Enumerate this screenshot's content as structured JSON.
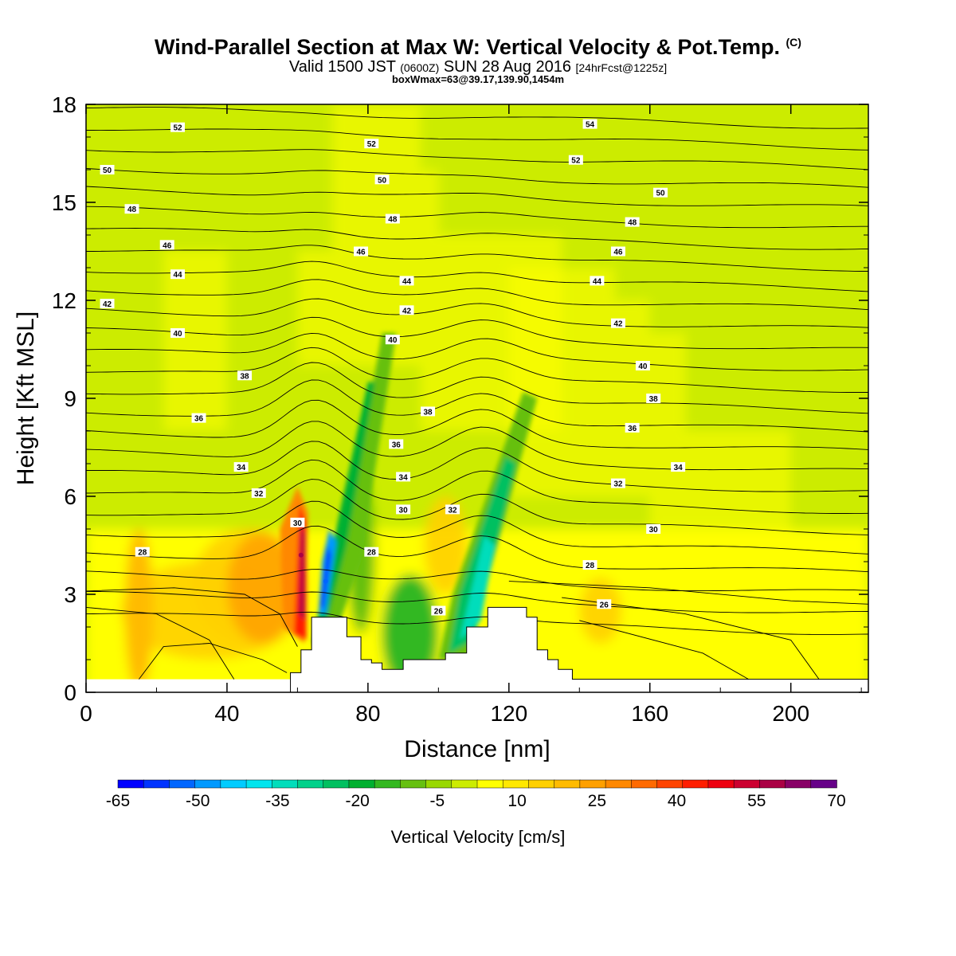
{
  "header": {
    "title": "Wind-Parallel Section at Max W: Vertical Velocity & Pot.Temp.",
    "title_mark": "(C)",
    "valid_a": "Valid 1500 JST ",
    "valid_utc": "(0600Z)",
    "valid_b": " SUN 28 Aug 2016 ",
    "forecast": "[24hrFcst@1225z]",
    "box_info": "boxWmax=63@39.17,139.90,1454m"
  },
  "chart_data": {
    "type": "heatmap",
    "xlabel": "Distance [nm]",
    "ylabel": "Height [Kft MSL]",
    "xlim": [
      0,
      222
    ],
    "ylim": [
      0,
      18
    ],
    "x_ticks": [
      "0",
      "40",
      "80",
      "120",
      "160",
      "200"
    ],
    "y_ticks": [
      "0",
      "3",
      "6",
      "9",
      "12",
      "15",
      "18"
    ],
    "colorbar": {
      "label": "Vertical Velocity [cm/s]",
      "tick_labels": [
        "-65",
        "-50",
        "-35",
        "-20",
        "-5",
        "10",
        "25",
        "40",
        "55",
        "70"
      ],
      "levels": [
        -65,
        -60,
        -55,
        -50,
        -45,
        -40,
        -35,
        -30,
        -25,
        -20,
        -15,
        -10,
        -5,
        0,
        5,
        10,
        15,
        20,
        25,
        30,
        35,
        40,
        45,
        50,
        55,
        60,
        65,
        70
      ],
      "colors": [
        "#0000ff",
        "#0033ff",
        "#0066ff",
        "#0099ff",
        "#00ccff",
        "#00e5ee",
        "#00ddbb",
        "#00d18a",
        "#00c060",
        "#00b030",
        "#33b820",
        "#66c010",
        "#99d800",
        "#ccec00",
        "#ffff00",
        "#ffe800",
        "#ffd000",
        "#ffbb00",
        "#ffa000",
        "#ff8800",
        "#ff6a00",
        "#ff4400",
        "#ff1e00",
        "#ee0010",
        "#cc0030",
        "#aa0044",
        "#880066",
        "#660088"
      ]
    },
    "velocity_features": [
      {
        "label": "updraft",
        "x": 61,
        "y": 4.2,
        "w": 63
      },
      {
        "label": "downdraft",
        "x": 68,
        "y": 3.4,
        "w": -55
      },
      {
        "label": "downdraft",
        "x": 110,
        "y": 3.0,
        "w": -32
      },
      {
        "label": "updraft",
        "x": 15,
        "y": 2.0,
        "w": 20
      }
    ],
    "terrain_profile": {
      "x": [
        58,
        61,
        64,
        70,
        74,
        78,
        81,
        84,
        90,
        96,
        102,
        108,
        114,
        120,
        125,
        128,
        131,
        134,
        138,
        222
      ],
      "y": [
        0.6,
        1.3,
        2.3,
        2.3,
        1.7,
        1.0,
        0.9,
        0.7,
        1.0,
        1.0,
        1.2,
        2.0,
        2.6,
        2.6,
        2.3,
        1.3,
        1.0,
        0.7,
        0.4,
        0.4
      ]
    },
    "theta_contour_labels": [
      {
        "text": "52",
        "x": 26,
        "y": 17.3
      },
      {
        "text": "54",
        "x": 143,
        "y": 17.4
      },
      {
        "text": "52",
        "x": 81,
        "y": 16.8
      },
      {
        "text": "52",
        "x": 139,
        "y": 16.3
      },
      {
        "text": "50",
        "x": 6,
        "y": 16.0
      },
      {
        "text": "50",
        "x": 84,
        "y": 15.7
      },
      {
        "text": "50",
        "x": 163,
        "y": 15.3
      },
      {
        "text": "48",
        "x": 13,
        "y": 14.8
      },
      {
        "text": "48",
        "x": 87,
        "y": 14.5
      },
      {
        "text": "48",
        "x": 155,
        "y": 14.4
      },
      {
        "text": "46",
        "x": 23,
        "y": 13.7
      },
      {
        "text": "46",
        "x": 78,
        "y": 13.5
      },
      {
        "text": "46",
        "x": 151,
        "y": 13.5
      },
      {
        "text": "44",
        "x": 26,
        "y": 12.8
      },
      {
        "text": "44",
        "x": 91,
        "y": 12.6
      },
      {
        "text": "44",
        "x": 145,
        "y": 12.6
      },
      {
        "text": "42",
        "x": 6,
        "y": 11.9
      },
      {
        "text": "42",
        "x": 91,
        "y": 11.7
      },
      {
        "text": "42",
        "x": 151,
        "y": 11.3
      },
      {
        "text": "40",
        "x": 26,
        "y": 11.0
      },
      {
        "text": "40",
        "x": 87,
        "y": 10.8
      },
      {
        "text": "40",
        "x": 158,
        "y": 10.0
      },
      {
        "text": "38",
        "x": 45,
        "y": 9.7
      },
      {
        "text": "38",
        "x": 97,
        "y": 8.6
      },
      {
        "text": "38",
        "x": 161,
        "y": 9.0
      },
      {
        "text": "36",
        "x": 32,
        "y": 8.4
      },
      {
        "text": "36",
        "x": 88,
        "y": 7.6
      },
      {
        "text": "36",
        "x": 155,
        "y": 8.1
      },
      {
        "text": "34",
        "x": 44,
        "y": 6.9
      },
      {
        "text": "34",
        "x": 90,
        "y": 6.6
      },
      {
        "text": "34",
        "x": 168,
        "y": 6.9
      },
      {
        "text": "32",
        "x": 49,
        "y": 6.1
      },
      {
        "text": "32",
        "x": 104,
        "y": 5.6
      },
      {
        "text": "32",
        "x": 151,
        "y": 6.4
      },
      {
        "text": "30",
        "x": 60,
        "y": 5.2
      },
      {
        "text": "30",
        "x": 90,
        "y": 5.6
      },
      {
        "text": "30",
        "x": 161,
        "y": 5.0
      },
      {
        "text": "28",
        "x": 16,
        "y": 4.3
      },
      {
        "text": "28",
        "x": 81,
        "y": 4.3
      },
      {
        "text": "28",
        "x": 143,
        "y": 3.9
      },
      {
        "text": "26",
        "x": 100,
        "y": 2.5
      },
      {
        "text": "26",
        "x": 147,
        "y": 2.7
      }
    ]
  }
}
